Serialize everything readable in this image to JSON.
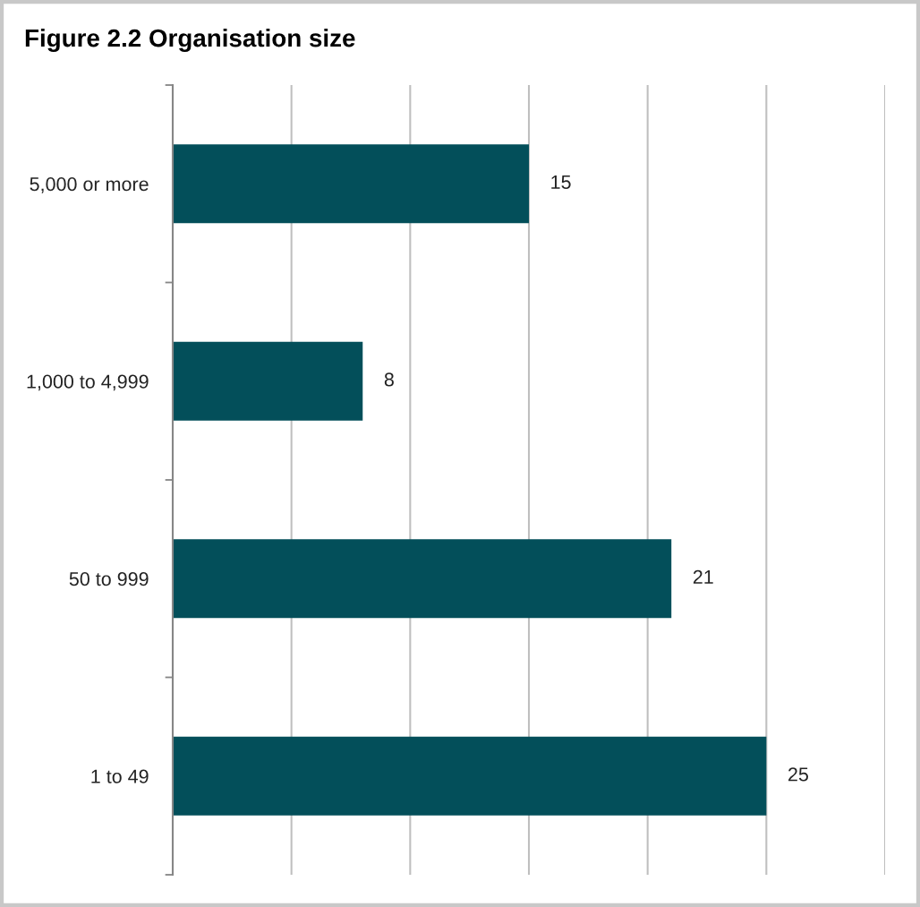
{
  "chart_data": {
    "type": "bar",
    "title": "Figure 2.2 Organisation size",
    "orientation": "horizontal",
    "categories": [
      "5,000 or more",
      "1,000 to 4,999",
      "50 to 999",
      "1 to 49"
    ],
    "values": [
      15,
      8,
      21,
      25
    ],
    "color": "#034f5a",
    "data_labels": true,
    "xlim": [
      0,
      30
    ],
    "xticks": [
      {
        "value": 0,
        "label": null
      },
      {
        "value": 5,
        "label": null
      },
      {
        "value": 10,
        "label": null
      },
      {
        "value": 15,
        "label": null
      },
      {
        "value": 20,
        "label": null
      },
      {
        "value": 25,
        "label": null
      },
      {
        "value": 30,
        "label": null
      }
    ],
    "grid": "x",
    "tick_labels": "y"
  }
}
